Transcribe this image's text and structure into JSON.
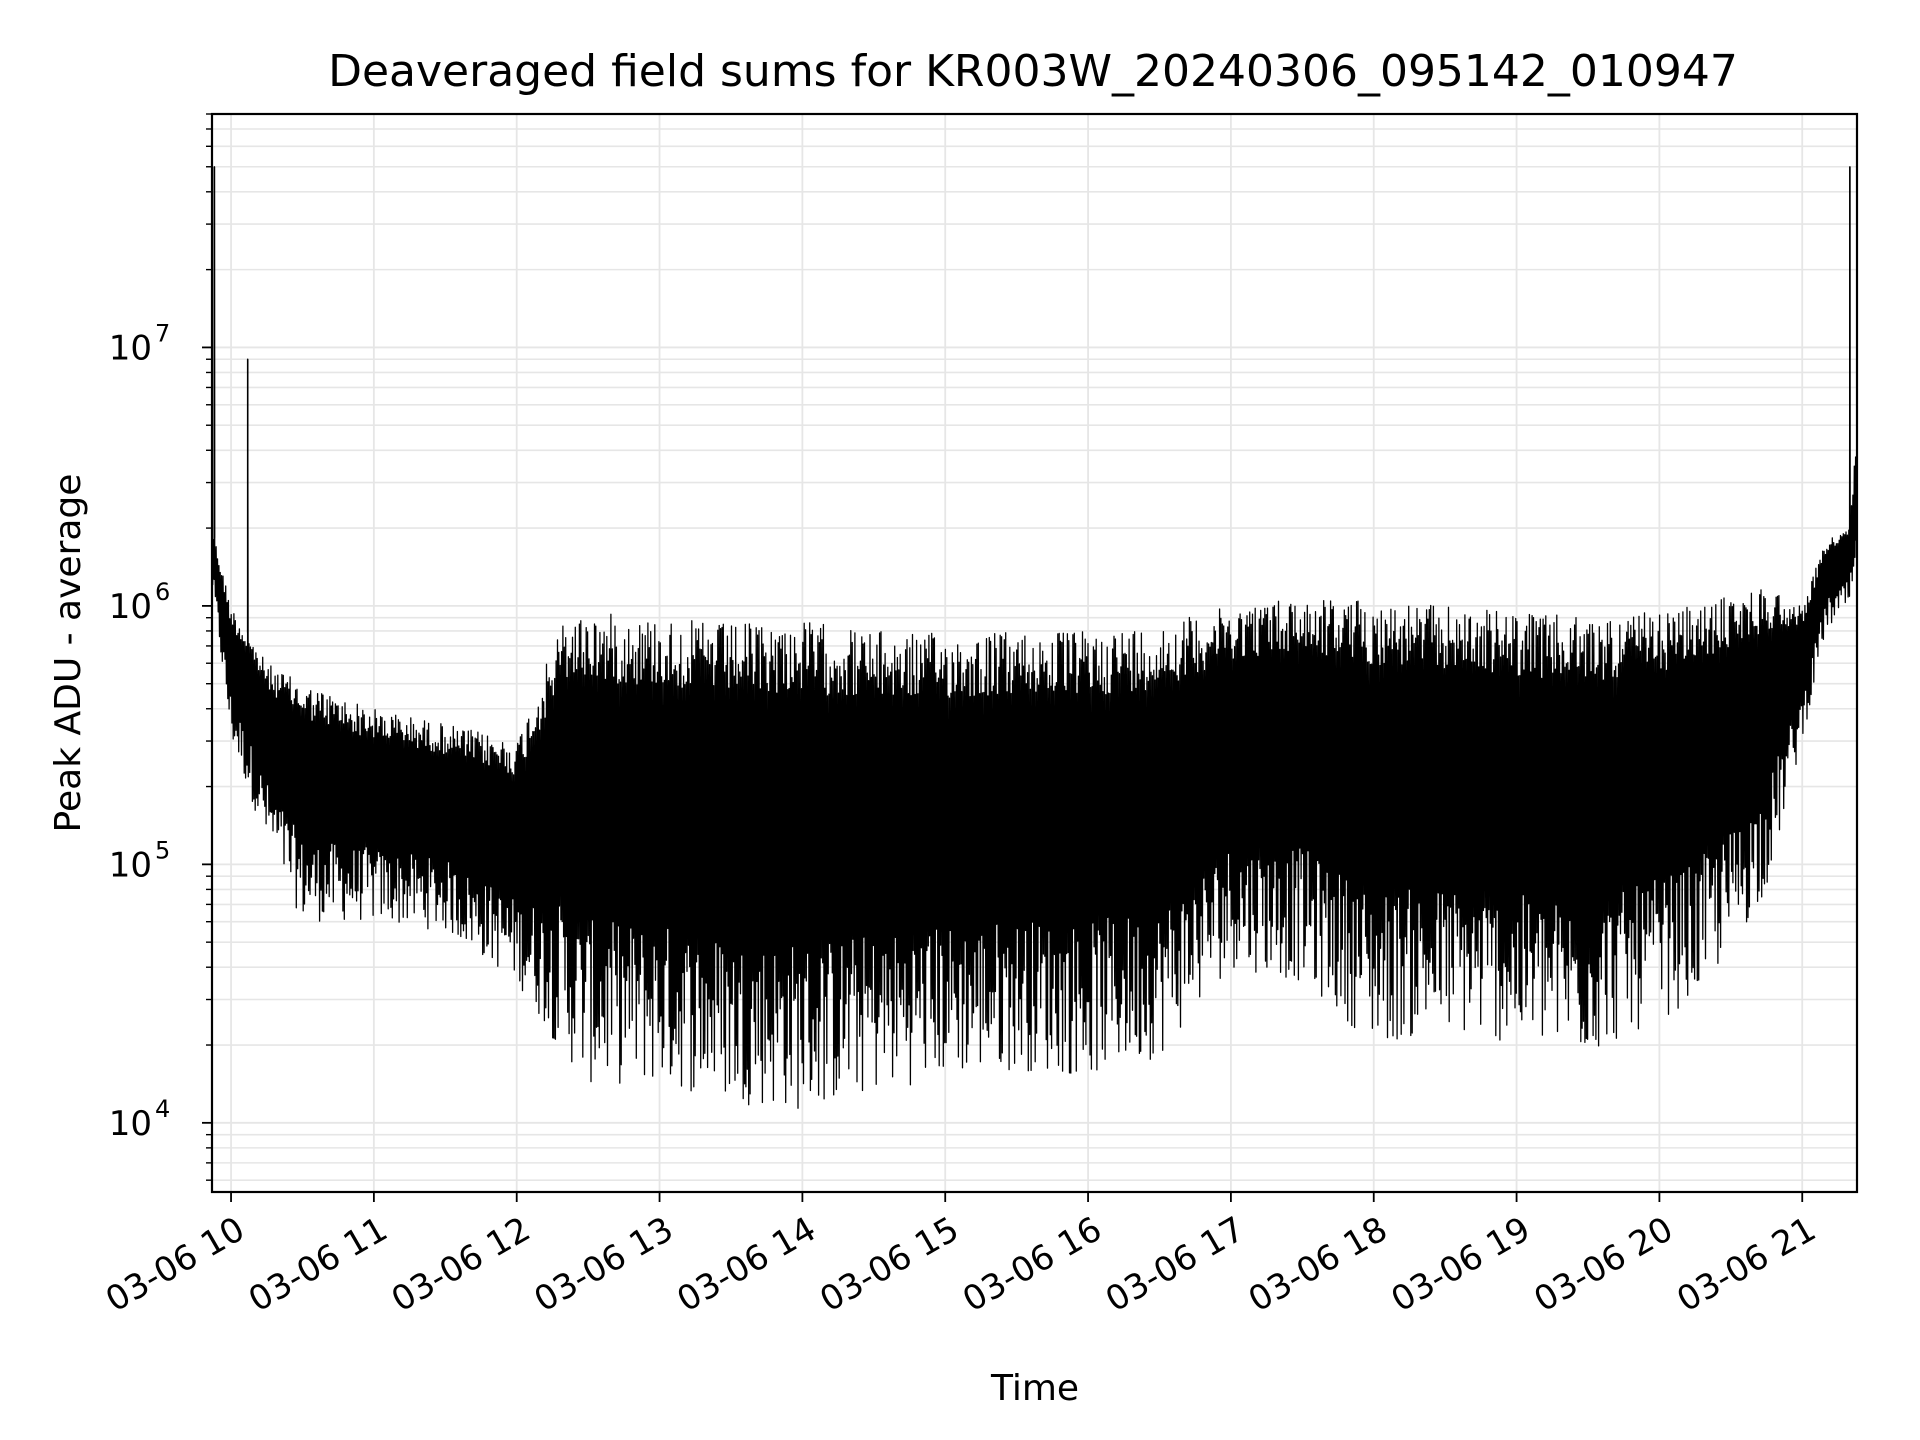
{
  "chart_data": {
    "type": "line",
    "title": "Deaveraged field sums for KR003W_20240306_095142_010947",
    "xlabel": "Time",
    "ylabel": "Peak ADU - average",
    "yscale": "log",
    "ylim": [
      5400,
      80000000
    ],
    "xlim": [
      "2024-03-06T09:52",
      "2024-03-06T21:23"
    ],
    "x_ticks": [
      "03-06 10",
      "03-06 11",
      "03-06 12",
      "03-06 13",
      "03-06 14",
      "03-06 15",
      "03-06 16",
      "03-06 17",
      "03-06 18",
      "03-06 19",
      "03-06 20",
      "03-06 21"
    ],
    "y_ticks": [
      {
        "value": 10000,
        "base": "10",
        "exp": "4"
      },
      {
        "value": 100000,
        "base": "10",
        "exp": "5"
      },
      {
        "value": 1000000,
        "base": "10",
        "exp": "6"
      },
      {
        "value": 10000000,
        "base": "10",
        "exp": "7"
      }
    ],
    "grid": true,
    "line_color": "#000000",
    "grid_color": "#e6e6e6",
    "series": [
      {
        "envelope": {
          "time": [
            "2024-03-06T09:52",
            "2024-03-06T10:00",
            "2024-03-06T10:15",
            "2024-03-06T10:30",
            "2024-03-06T11:00",
            "2024-03-06T11:30",
            "2024-03-06T12:00",
            "2024-03-06T12:20",
            "2024-03-06T12:30",
            "2024-03-06T13:00",
            "2024-03-06T13:30",
            "2024-03-06T14:00",
            "2024-03-06T14:30",
            "2024-03-06T15:00",
            "2024-03-06T15:30",
            "2024-03-06T16:00",
            "2024-03-06T16:30",
            "2024-03-06T17:00",
            "2024-03-06T17:30",
            "2024-03-06T18:00",
            "2024-03-06T18:30",
            "2024-03-06T19:00",
            "2024-03-06T19:30",
            "2024-03-06T20:00",
            "2024-03-06T20:15",
            "2024-03-06T20:30",
            "2024-03-06T20:45",
            "2024-03-06T21:00",
            "2024-03-06T21:10",
            "2024-03-06T21:20",
            "2024-03-06T21:23"
          ],
          "upper": [
            2000000,
            1000000,
            600000,
            500000,
            400000,
            350000,
            300000,
            900000,
            950000,
            900000,
            850000,
            880000,
            800000,
            780000,
            800000,
            800000,
            850000,
            1000000,
            1100000,
            1050000,
            1000000,
            950000,
            900000,
            950000,
            1000000,
            1100000,
            1200000,
            1000000,
            1800000,
            2000000,
            5000000
          ],
          "lower": [
            1200000,
            300000,
            120000,
            60000,
            60000,
            55000,
            35000,
            18000,
            14000,
            14000,
            12000,
            11000,
            13000,
            15000,
            16000,
            15000,
            18000,
            40000,
            35000,
            20000,
            22000,
            20000,
            18000,
            25000,
            30000,
            45000,
            80000,
            300000,
            800000,
            1000000,
            1200000
          ]
        },
        "spikes": [
          {
            "time": "2024-03-06T09:53",
            "value": 50000000
          },
          {
            "time": "2024-03-06T10:07",
            "value": 9000000
          },
          {
            "time": "2024-03-06T21:20",
            "value": 50000000
          },
          {
            "time": "2024-03-06T21:23",
            "value": 7000000
          }
        ]
      }
    ]
  }
}
